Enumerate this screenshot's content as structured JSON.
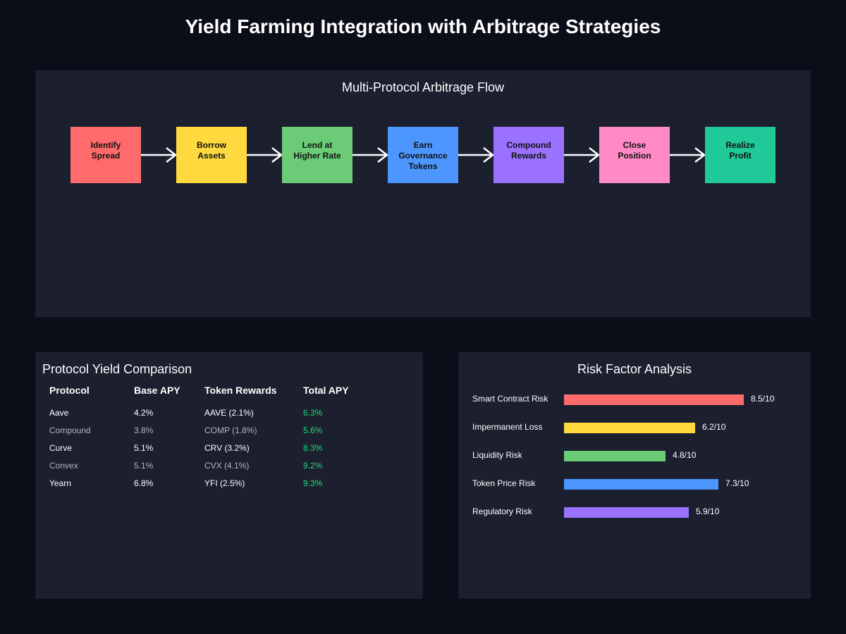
{
  "title": "Yield Farming Integration with Arbitrage Strategies",
  "flow": {
    "title": "Multi-Protocol Arbitrage Flow",
    "steps": [
      {
        "label": "Identify\nSpread",
        "color": "#ff6b6b"
      },
      {
        "label": "Borrow\nAssets",
        "color": "#ffd93d"
      },
      {
        "label": "Lend at\nHigher Rate",
        "color": "#6bcb77"
      },
      {
        "label": "Earn\nGovernance\nTokens",
        "color": "#4d96ff"
      },
      {
        "label": "Compound\nRewards",
        "color": "#9b72ff"
      },
      {
        "label": "Close\nPosition",
        "color": "#ff8ac5"
      },
      {
        "label": "Realize\nProfit",
        "color": "#20c997"
      }
    ]
  },
  "table": {
    "title": "Protocol Yield Comparison",
    "headers": [
      "Protocol",
      "Base APY",
      "Token Rewards",
      "Total APY"
    ],
    "rows": [
      [
        "Aave",
        "4.2%",
        "AAVE (2.1%)",
        "6.3%"
      ],
      [
        "Compound",
        "3.8%",
        "COMP (1.8%)",
        "5.6%"
      ],
      [
        "Curve",
        "5.1%",
        "CRV (3.2%)",
        "8.3%"
      ],
      [
        "Convex",
        "5.1%",
        "CVX (4.1%)",
        "9.2%"
      ],
      [
        "Yearn",
        "6.8%",
        "YFI (2.5%)",
        "9.3%"
      ]
    ]
  },
  "risk": {
    "title": "Risk Factor Analysis",
    "max": 10,
    "items": [
      {
        "label": "Smart Contract Risk",
        "score": 8.5,
        "value_text": "8.5/10",
        "color": "#ff6b6b"
      },
      {
        "label": "Impermanent Loss",
        "score": 6.2,
        "value_text": "6.2/10",
        "color": "#ffd93d"
      },
      {
        "label": "Liquidity Risk",
        "score": 4.8,
        "value_text": "4.8/10",
        "color": "#6bcb77"
      },
      {
        "label": "Token Price Risk",
        "score": 7.3,
        "value_text": "7.3/10",
        "color": "#4d96ff"
      },
      {
        "label": "Regulatory Risk",
        "score": 5.9,
        "value_text": "5.9/10",
        "color": "#9b72ff"
      }
    ]
  }
}
